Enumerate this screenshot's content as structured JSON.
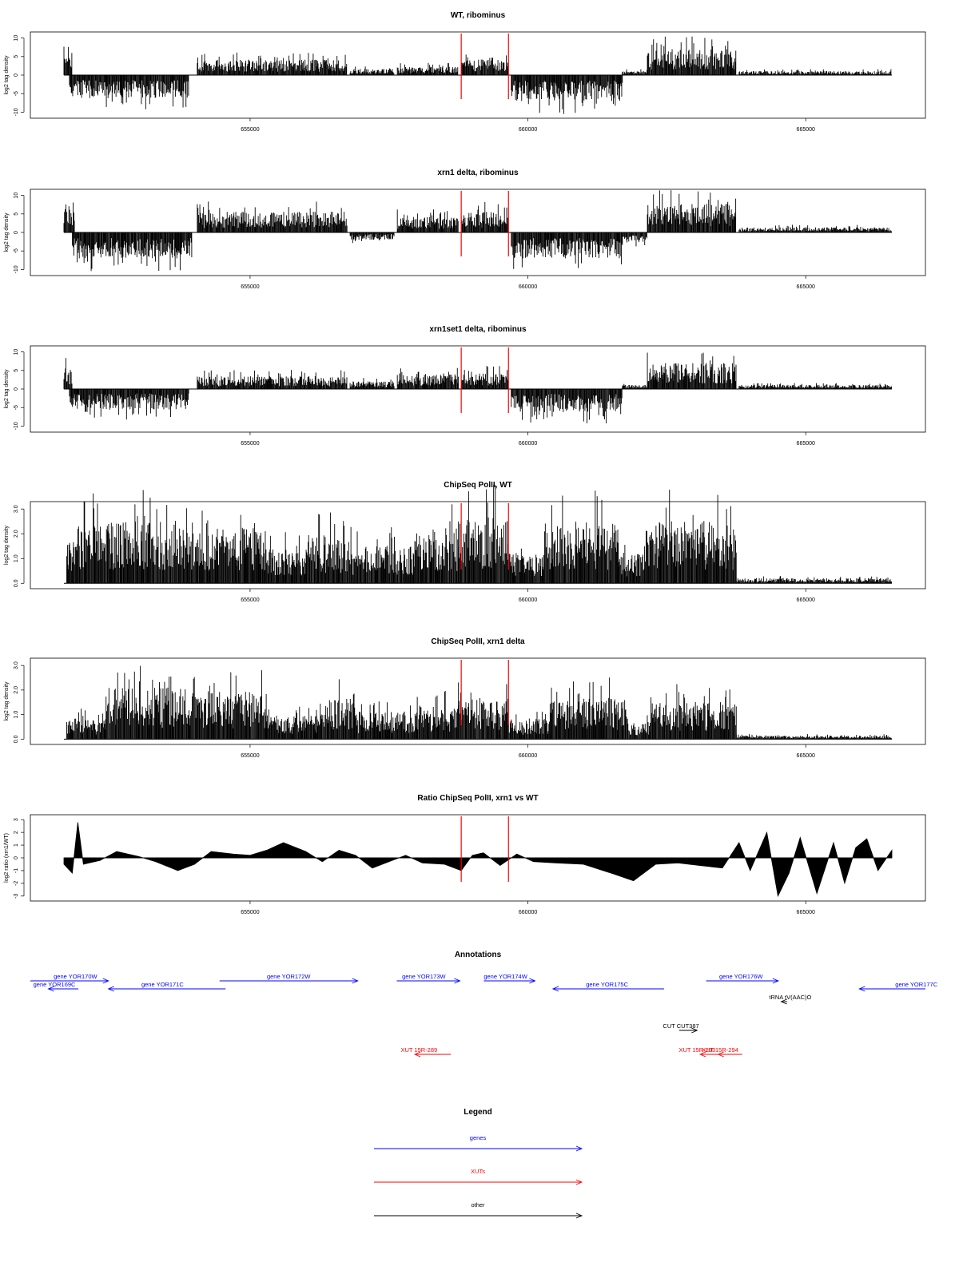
{
  "chart_data": [
    {
      "type": "bar",
      "title": "WT, ribominus",
      "ylabel": "log2 tag density",
      "ylim": [
        -11,
        11
      ],
      "yticks": [
        "-10",
        "-5",
        "0",
        "5",
        "10"
      ],
      "xlim": [
        651650,
        666550
      ],
      "xticks": [
        "655000",
        "660000",
        "665000"
      ],
      "markers": [
        658800,
        659650
      ],
      "segments": [
        {
          "from": 651650,
          "to": 651800,
          "y": 6
        },
        {
          "from": 651750,
          "to": 653900,
          "y": -4.5
        },
        {
          "from": 654050,
          "to": 656750,
          "y": 3
        },
        {
          "from": 656800,
          "to": 657600,
          "y": 1.2
        },
        {
          "from": 657650,
          "to": 658750,
          "y": 1.6
        },
        {
          "from": 658800,
          "to": 659650,
          "y": 3
        },
        {
          "from": 659700,
          "to": 661700,
          "y": -5
        },
        {
          "from": 661700,
          "to": 662150,
          "y": 0.8
        },
        {
          "from": 662150,
          "to": 663750,
          "y": 5
        },
        {
          "from": 663800,
          "to": 666550,
          "y": 0.8
        }
      ],
      "color": "#000000"
    },
    {
      "type": "bar",
      "title": "xrn1 delta, ribominus",
      "ylabel": "log2 tag density",
      "ylim": [
        -11,
        11
      ],
      "yticks": [
        "-10",
        "-5",
        "0",
        "5",
        "10"
      ],
      "xlim": [
        651650,
        666550
      ],
      "xticks": [
        "655000",
        "660000",
        "665000"
      ],
      "markers": [
        658800,
        659650
      ],
      "segments": [
        {
          "from": 651650,
          "to": 651850,
          "y": 6
        },
        {
          "from": 651800,
          "to": 653950,
          "y": -5
        },
        {
          "from": 654050,
          "to": 656750,
          "y": 4
        },
        {
          "from": 656800,
          "to": 657600,
          "y": -1.5
        },
        {
          "from": 657650,
          "to": 658750,
          "y": 3
        },
        {
          "from": 658800,
          "to": 659650,
          "y": 4
        },
        {
          "from": 659700,
          "to": 661700,
          "y": -5
        },
        {
          "from": 661700,
          "to": 662150,
          "y": -2
        },
        {
          "from": 662150,
          "to": 663750,
          "y": 5.5
        },
        {
          "from": 663800,
          "to": 666550,
          "y": 1
        }
      ],
      "color": "#000000"
    },
    {
      "type": "bar",
      "title": "xrn1set1 delta, ribominus",
      "ylabel": "log2 tag density",
      "ylim": [
        -11,
        11
      ],
      "yticks": [
        "-10",
        "-5",
        "0",
        "5",
        "10"
      ],
      "xlim": [
        651650,
        666550
      ],
      "xticks": [
        "655000",
        "660000",
        "665000"
      ],
      "markers": [
        658800,
        659650
      ],
      "segments": [
        {
          "from": 651650,
          "to": 651800,
          "y": 4
        },
        {
          "from": 651750,
          "to": 653900,
          "y": -4
        },
        {
          "from": 654050,
          "to": 656750,
          "y": 2.5
        },
        {
          "from": 656800,
          "to": 657600,
          "y": 1.5
        },
        {
          "from": 657650,
          "to": 658750,
          "y": 3
        },
        {
          "from": 658800,
          "to": 659650,
          "y": 3
        },
        {
          "from": 659700,
          "to": 661700,
          "y": -4.5
        },
        {
          "from": 661700,
          "to": 662150,
          "y": 0.8
        },
        {
          "from": 662150,
          "to": 663750,
          "y": 5
        },
        {
          "from": 663800,
          "to": 666550,
          "y": 0.8
        }
      ],
      "color": "#000000"
    },
    {
      "type": "bar",
      "title": "ChipSeq PolII, WT",
      "ylabel": "log2 tag density",
      "ylim": [
        -0.12,
        3.2
      ],
      "yticks": [
        "0.0",
        "1.0",
        "2.0",
        "3.0"
      ],
      "xlim": [
        651650,
        666550
      ],
      "xticks": [
        "655000",
        "660000",
        "665000"
      ],
      "markers": [
        658800,
        659650
      ],
      "segments": [
        {
          "from": 651700,
          "to": 651900,
          "y": 1.2
        },
        {
          "from": 651900,
          "to": 653950,
          "y": 1.8
        },
        {
          "from": 653950,
          "to": 655300,
          "y": 1.6
        },
        {
          "from": 655300,
          "to": 656000,
          "y": 1.0
        },
        {
          "from": 656000,
          "to": 656800,
          "y": 1.4
        },
        {
          "from": 656800,
          "to": 658000,
          "y": 1.1
        },
        {
          "from": 658000,
          "to": 658750,
          "y": 1.6
        },
        {
          "from": 658750,
          "to": 659650,
          "y": 1.9
        },
        {
          "from": 659650,
          "to": 660300,
          "y": 0.9
        },
        {
          "from": 660300,
          "to": 661650,
          "y": 1.8
        },
        {
          "from": 661650,
          "to": 662100,
          "y": 0.9
        },
        {
          "from": 662100,
          "to": 663750,
          "y": 1.8
        },
        {
          "from": 663750,
          "to": 666550,
          "y": 0.15
        }
      ],
      "color": "#000000"
    },
    {
      "type": "bar",
      "title": "ChipSeq PolII, xrn1 delta",
      "ylabel": "log2 tag density",
      "ylim": [
        -0.12,
        3.2
      ],
      "yticks": [
        "0.0",
        "1.0",
        "2.0",
        "3.0"
      ],
      "xlim": [
        651650,
        666550
      ],
      "xticks": [
        "655000",
        "660000",
        "665000"
      ],
      "markers": [
        658800,
        659650
      ],
      "segments": [
        {
          "from": 651700,
          "to": 651900,
          "y": 0.6
        },
        {
          "from": 651900,
          "to": 652400,
          "y": 0.6
        },
        {
          "from": 652400,
          "to": 653900,
          "y": 1.5
        },
        {
          "from": 653900,
          "to": 655300,
          "y": 1.4
        },
        {
          "from": 655300,
          "to": 656200,
          "y": 0.7
        },
        {
          "from": 656200,
          "to": 656900,
          "y": 1.2
        },
        {
          "from": 656900,
          "to": 658000,
          "y": 0.8
        },
        {
          "from": 658000,
          "to": 658750,
          "y": 1.0
        },
        {
          "from": 658750,
          "to": 659650,
          "y": 1.2
        },
        {
          "from": 659650,
          "to": 660400,
          "y": 0.6
        },
        {
          "from": 660400,
          "to": 661800,
          "y": 1.2
        },
        {
          "from": 661800,
          "to": 662200,
          "y": 0.5
        },
        {
          "from": 662200,
          "to": 663750,
          "y": 1.1
        },
        {
          "from": 663750,
          "to": 666550,
          "y": 0.1
        }
      ],
      "color": "#000000"
    },
    {
      "type": "area",
      "title": "Ratio ChipSeq PolII, xrn1 vs WT",
      "ylabel": "log2 ratio (xrn1/WT)",
      "ylim": [
        -3.2,
        3.2
      ],
      "yticks": [
        "-3",
        "-2",
        "-1",
        "0",
        "1",
        "2",
        "3"
      ],
      "xlim": [
        651650,
        666550
      ],
      "xticks": [
        "655000",
        "660000",
        "665000"
      ],
      "markers": [
        658800,
        659650
      ],
      "x": [
        651650,
        651800,
        651900,
        652000,
        652100,
        652300,
        652600,
        653000,
        653300,
        653700,
        654000,
        654300,
        654700,
        655000,
        655300,
        655600,
        656000,
        656300,
        656600,
        656900,
        657200,
        657500,
        657800,
        658100,
        658500,
        658800,
        659000,
        659200,
        659500,
        659800,
        660100,
        660500,
        661000,
        661500,
        661900,
        662300,
        662700,
        663100,
        663500,
        663800,
        664000,
        664300,
        664500,
        664700,
        664900,
        665200,
        665500,
        665700,
        665900,
        666100,
        666300,
        666550
      ],
      "y": [
        -0.5,
        -1.2,
        2.8,
        -0.5,
        -0.4,
        -0.2,
        0.5,
        0.1,
        -0.3,
        -1.0,
        -0.5,
        0.5,
        0.3,
        0.2,
        0.6,
        1.2,
        0.5,
        -0.3,
        0.6,
        0.2,
        -0.8,
        -0.3,
        0.2,
        -0.4,
        -0.5,
        -1.0,
        0.2,
        0.4,
        -0.6,
        0.3,
        -0.3,
        -0.4,
        -0.5,
        -1.2,
        -1.8,
        -0.5,
        -0.4,
        -0.6,
        -0.8,
        1.2,
        -1.0,
        2.0,
        -3.0,
        -1.2,
        1.6,
        -2.8,
        1.2,
        -2.0,
        0.8,
        1.5,
        -1.0,
        0.6
      ],
      "color": "#000000"
    }
  ],
  "annotations": {
    "title": "Annotations",
    "xlim": [
      651650,
      666550
    ],
    "items": [
      {
        "label": "gene YOR170W",
        "from": 651650,
        "to": 652950,
        "lane": 0,
        "dir": "right",
        "color": "#0000ff",
        "labelAt": 652400
      },
      {
        "label": "gene YOR169C",
        "from": 651950,
        "to": 652450,
        "lane": 1,
        "dir": "left",
        "color": "#0000ff",
        "labelAt": 652050
      },
      {
        "label": "gene YOR171C",
        "from": 652950,
        "to": 654900,
        "lane": 1,
        "dir": "left",
        "color": "#0000ff",
        "labelAt": 653850
      },
      {
        "label": "gene YOR172W",
        "from": 654800,
        "to": 657100,
        "lane": 0,
        "dir": "right",
        "color": "#0000ff",
        "labelAt": 655950
      },
      {
        "label": "gene YOR173W",
        "from": 657750,
        "to": 658800,
        "lane": 0,
        "dir": "right",
        "color": "#0000ff",
        "labelAt": 658200
      },
      {
        "label": "gene YOR174W",
        "from": 659200,
        "to": 660050,
        "lane": 0,
        "dir": "right",
        "color": "#0000ff",
        "labelAt": 659560
      },
      {
        "label": "gene YOR175C",
        "from": 660350,
        "to": 662200,
        "lane": 1,
        "dir": "left",
        "color": "#0000ff",
        "labelAt": 661250
      },
      {
        "label": "gene YOR176W",
        "from": 662900,
        "to": 664100,
        "lane": 0,
        "dir": "right",
        "color": "#0000ff",
        "labelAt": 663480
      },
      {
        "label": "gene YOR177C",
        "from": 665450,
        "to": 666550,
        "lane": 1,
        "dir": "left",
        "color": "#0000ff",
        "labelAt": 666400
      },
      {
        "label": "tRNA tV(AAC)O",
        "from": 664150,
        "to": 664250,
        "lane": 2,
        "dir": "left",
        "color": "#000000",
        "labelAt": 664300
      },
      {
        "label": "CUT CUT387",
        "from": 662450,
        "to": 662750,
        "lane": 3,
        "dir": "right",
        "color": "#000000",
        "labelAt": 662480
      },
      {
        "label": "XUT 15R-289",
        "from": 658050,
        "to": 658650,
        "lane": 4,
        "dir": "left",
        "color": "#ff0000",
        "labelAt": 658120
      },
      {
        "label": "XUT 15R-293",
        "from": 662800,
        "to": 663200,
        "lane": 4,
        "dir": "left",
        "color": "#ff0000",
        "labelAt": 662750
      },
      {
        "label": "XUT 15R-294",
        "from": 663100,
        "to": 663500,
        "lane": 4,
        "dir": "left",
        "color": "#ff0000",
        "labelAt": 663130
      }
    ]
  },
  "legend": {
    "title": "Legend",
    "items": [
      {
        "label": "genes",
        "color": "#0000ff"
      },
      {
        "label": "XUTs",
        "color": "#ff0000"
      },
      {
        "label": "other",
        "color": "#000000"
      }
    ]
  }
}
